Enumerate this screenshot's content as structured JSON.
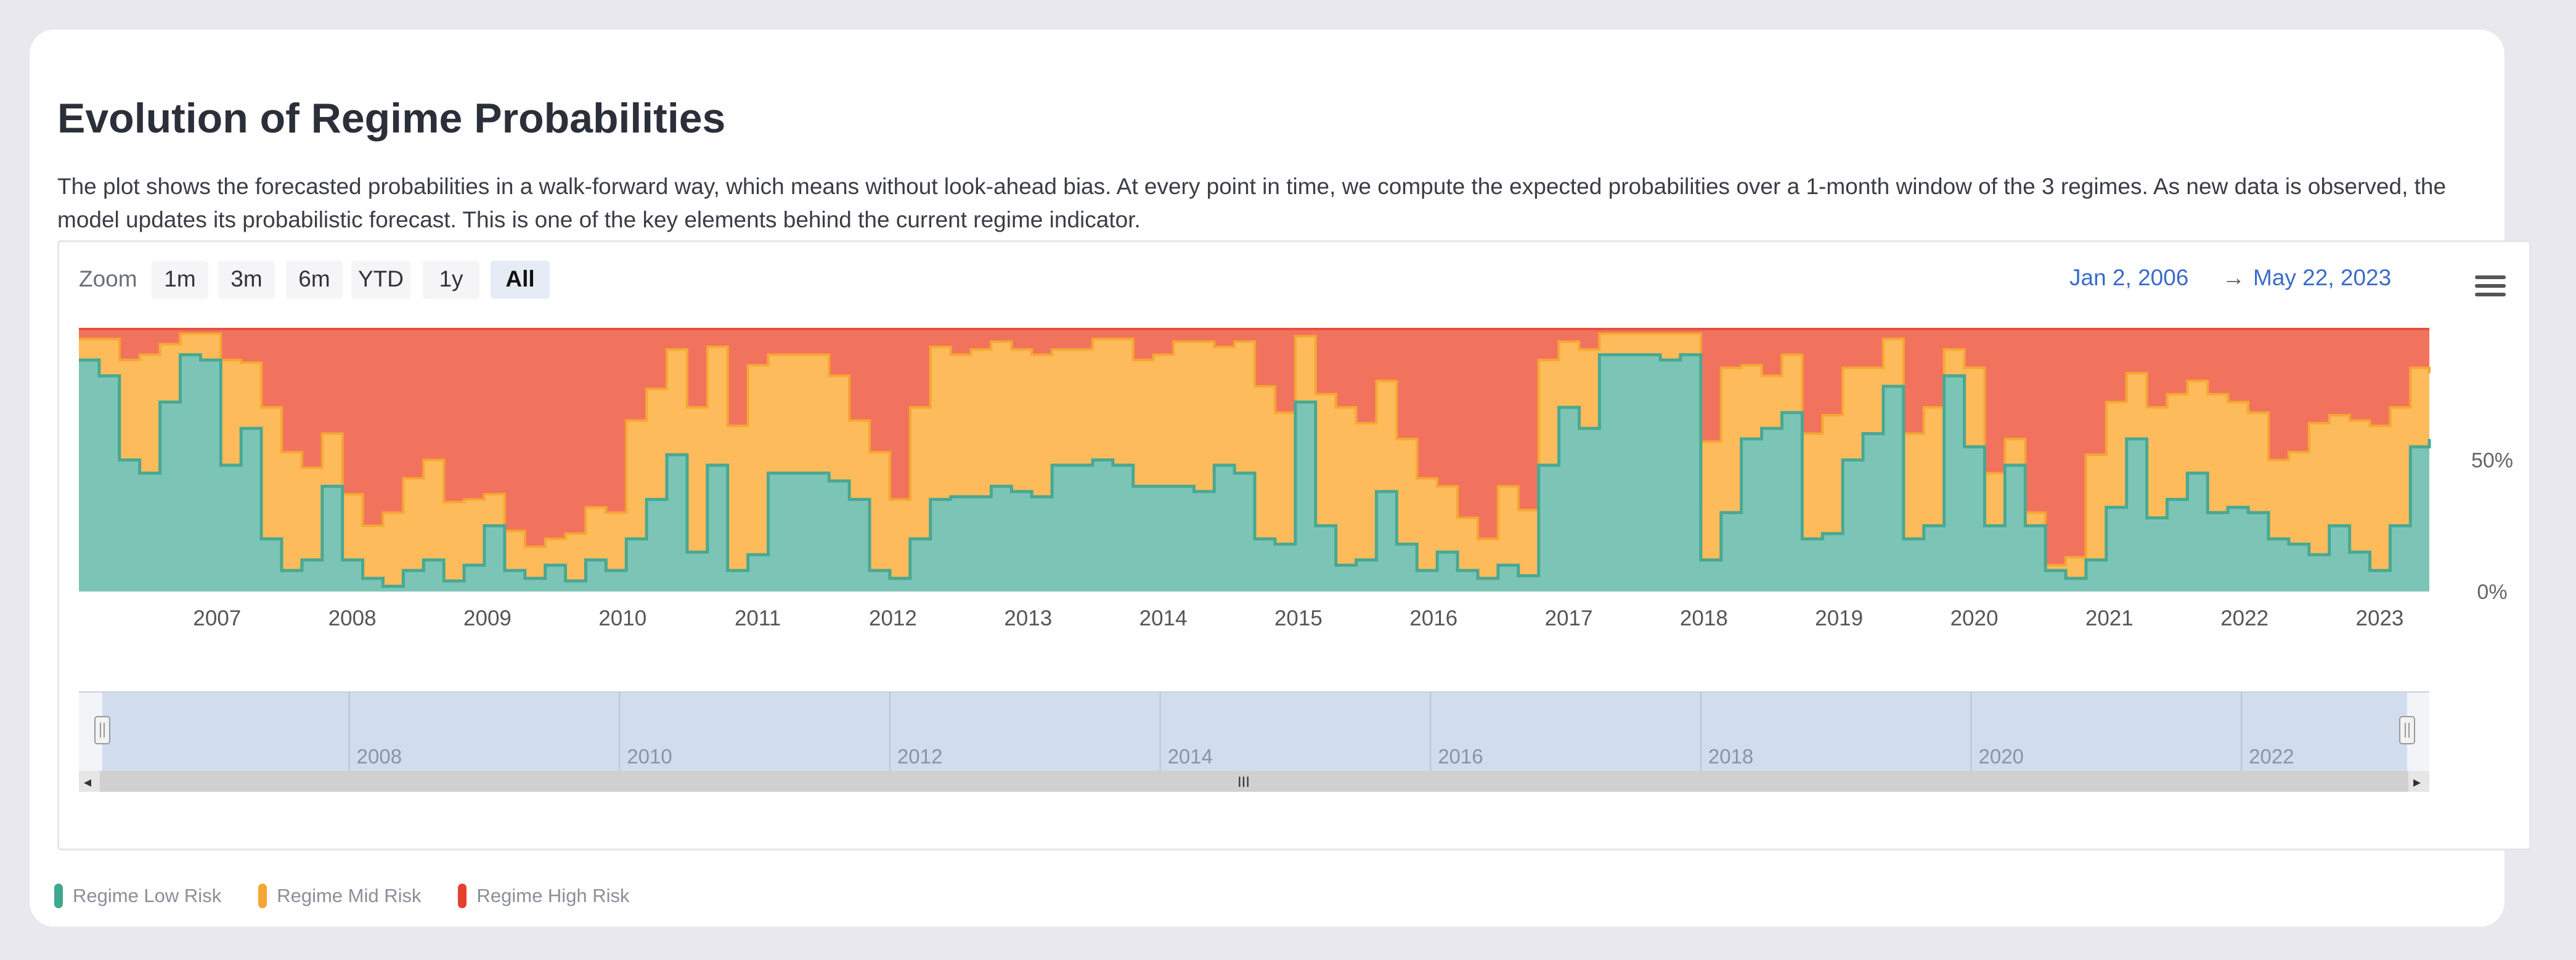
{
  "page": {
    "title": "Evolution of Regime Probabilities",
    "description": "The plot shows the forecasted probabilities in a walk-forward way, which means without look-ahead bias. At every point in time, we compute the expected probabilities over a 1-month window of the 3 regimes. As new data is observed, the model updates its probabilistic forecast. This is one of the key elements behind the current regime indicator."
  },
  "toolbar": {
    "zoom_label": "Zoom",
    "zoom_buttons": [
      "1m",
      "3m",
      "6m",
      "YTD",
      "1y",
      "All"
    ],
    "active_zoom": "All",
    "range_from": "Jan 2, 2006",
    "range_arrow": "→",
    "range_to": "May 22, 2023",
    "menu_icon": "hamburger-menu-icon"
  },
  "colors": {
    "low": "#7cc5b6",
    "low_line": "#49a892",
    "mid": "#fdbb5b",
    "mid_line": "#f5a733",
    "high": "#f2735d",
    "high_line": "#e5513c",
    "navigator_fill": "#d1ddec",
    "link": "#3b6cc9"
  },
  "legend": [
    {
      "name": "Regime Low Risk",
      "color": "#3ea98e"
    },
    {
      "name": "Regime Mid Risk",
      "color": "#f7a634"
    },
    {
      "name": "Regime High Risk",
      "color": "#e5412e"
    }
  ],
  "chart_data": {
    "type": "area",
    "stacked": true,
    "x_unit": "year",
    "x_range": [
      2006.0,
      2023.39
    ],
    "ylim": [
      0,
      100
    ],
    "y_ticks": [
      "0%",
      "50%"
    ],
    "y_tick_values": [
      0,
      50
    ],
    "x_ticks": [
      "2007",
      "2008",
      "2009",
      "2010",
      "2011",
      "2012",
      "2013",
      "2014",
      "2015",
      "2016",
      "2017",
      "2018",
      "2019",
      "2020",
      "2021",
      "2022",
      "2023"
    ],
    "x_tick_values": [
      2007,
      2008,
      2009,
      2010,
      2011,
      2012,
      2013,
      2014,
      2015,
      2016,
      2017,
      2018,
      2019,
      2020,
      2021,
      2022,
      2023
    ],
    "navigator_ticks": [
      "2008",
      "2010",
      "2012",
      "2014",
      "2016",
      "2018",
      "2020",
      "2022"
    ],
    "navigator_tick_values": [
      2008,
      2010,
      2012,
      2014,
      2016,
      2018,
      2020,
      2022
    ],
    "x": [
      2006.0,
      2006.15,
      2006.3,
      2006.45,
      2006.6,
      2006.75,
      2006.9,
      2007.05,
      2007.2,
      2007.35,
      2007.5,
      2007.65,
      2007.8,
      2007.95,
      2008.1,
      2008.25,
      2008.4,
      2008.55,
      2008.7,
      2008.85,
      2009.0,
      2009.15,
      2009.3,
      2009.45,
      2009.6,
      2009.75,
      2009.9,
      2010.05,
      2010.2,
      2010.35,
      2010.5,
      2010.65,
      2010.8,
      2010.95,
      2011.1,
      2011.25,
      2011.4,
      2011.55,
      2011.7,
      2011.85,
      2012.0,
      2012.15,
      2012.3,
      2012.45,
      2012.6,
      2012.75,
      2012.9,
      2013.05,
      2013.2,
      2013.35,
      2013.5,
      2013.65,
      2013.8,
      2013.95,
      2014.1,
      2014.25,
      2014.4,
      2014.55,
      2014.7,
      2014.85,
      2015.0,
      2015.15,
      2015.3,
      2015.45,
      2015.6,
      2015.75,
      2015.9,
      2016.05,
      2016.2,
      2016.35,
      2016.5,
      2016.65,
      2016.8,
      2016.95,
      2017.1,
      2017.25,
      2017.4,
      2017.55,
      2017.7,
      2017.85,
      2018.0,
      2018.15,
      2018.3,
      2018.45,
      2018.6,
      2018.75,
      2018.9,
      2019.05,
      2019.2,
      2019.35,
      2019.5,
      2019.65,
      2019.8,
      2019.95,
      2020.1,
      2020.25,
      2020.4,
      2020.55,
      2020.7,
      2020.85,
      2021.0,
      2021.15,
      2021.3,
      2021.45,
      2021.6,
      2021.75,
      2021.9,
      2022.05,
      2022.2,
      2022.35,
      2022.5,
      2022.65,
      2022.8,
      2022.95,
      2023.1,
      2023.25,
      2023.39
    ],
    "series": [
      {
        "name": "Regime Low Risk",
        "values": [
          88,
          82,
          50,
          45,
          72,
          90,
          88,
          48,
          62,
          20,
          8,
          12,
          40,
          12,
          5,
          2,
          8,
          12,
          4,
          10,
          25,
          8,
          5,
          10,
          4,
          12,
          8,
          20,
          35,
          52,
          15,
          48,
          8,
          14,
          45,
          45,
          45,
          42,
          35,
          8,
          5,
          20,
          35,
          36,
          36,
          40,
          38,
          36,
          48,
          48,
          50,
          48,
          40,
          40,
          40,
          38,
          48,
          45,
          20,
          18,
          72,
          25,
          10,
          12,
          38,
          18,
          8,
          15,
          8,
          5,
          10,
          6,
          48,
          70,
          62,
          90,
          90,
          90,
          88,
          90,
          12,
          30,
          58,
          62,
          68,
          20,
          22,
          50,
          60,
          78,
          20,
          25,
          82,
          55,
          25,
          48,
          25,
          8,
          5,
          12,
          32,
          58,
          28,
          35,
          45,
          30,
          32,
          30,
          20,
          18,
          14,
          25,
          15,
          8,
          25,
          55,
          58
        ]
      },
      {
        "name": "Regime Mid Risk",
        "values": [
          8,
          14,
          38,
          45,
          22,
          8,
          10,
          40,
          25,
          50,
          45,
          35,
          20,
          25,
          20,
          28,
          35,
          38,
          30,
          25,
          12,
          15,
          12,
          10,
          18,
          20,
          22,
          45,
          42,
          40,
          55,
          45,
          55,
          72,
          45,
          45,
          45,
          40,
          30,
          45,
          30,
          50,
          58,
          54,
          56,
          55,
          54,
          54,
          44,
          44,
          46,
          48,
          48,
          50,
          55,
          57,
          45,
          50,
          58,
          50,
          25,
          50,
          60,
          52,
          42,
          40,
          35,
          25,
          20,
          15,
          30,
          25,
          40,
          25,
          30,
          8,
          8,
          8,
          10,
          8,
          45,
          55,
          28,
          20,
          22,
          40,
          45,
          35,
          25,
          18,
          40,
          45,
          10,
          30,
          20,
          10,
          5,
          2,
          8,
          40,
          40,
          25,
          42,
          40,
          35,
          45,
          40,
          38,
          30,
          35,
          50,
          42,
          50,
          55,
          45,
          30,
          25
        ]
      }
    ]
  },
  "scrollbar": {
    "grip_glyph": "III",
    "left_arrow": "◂",
    "right_arrow": "▸"
  }
}
